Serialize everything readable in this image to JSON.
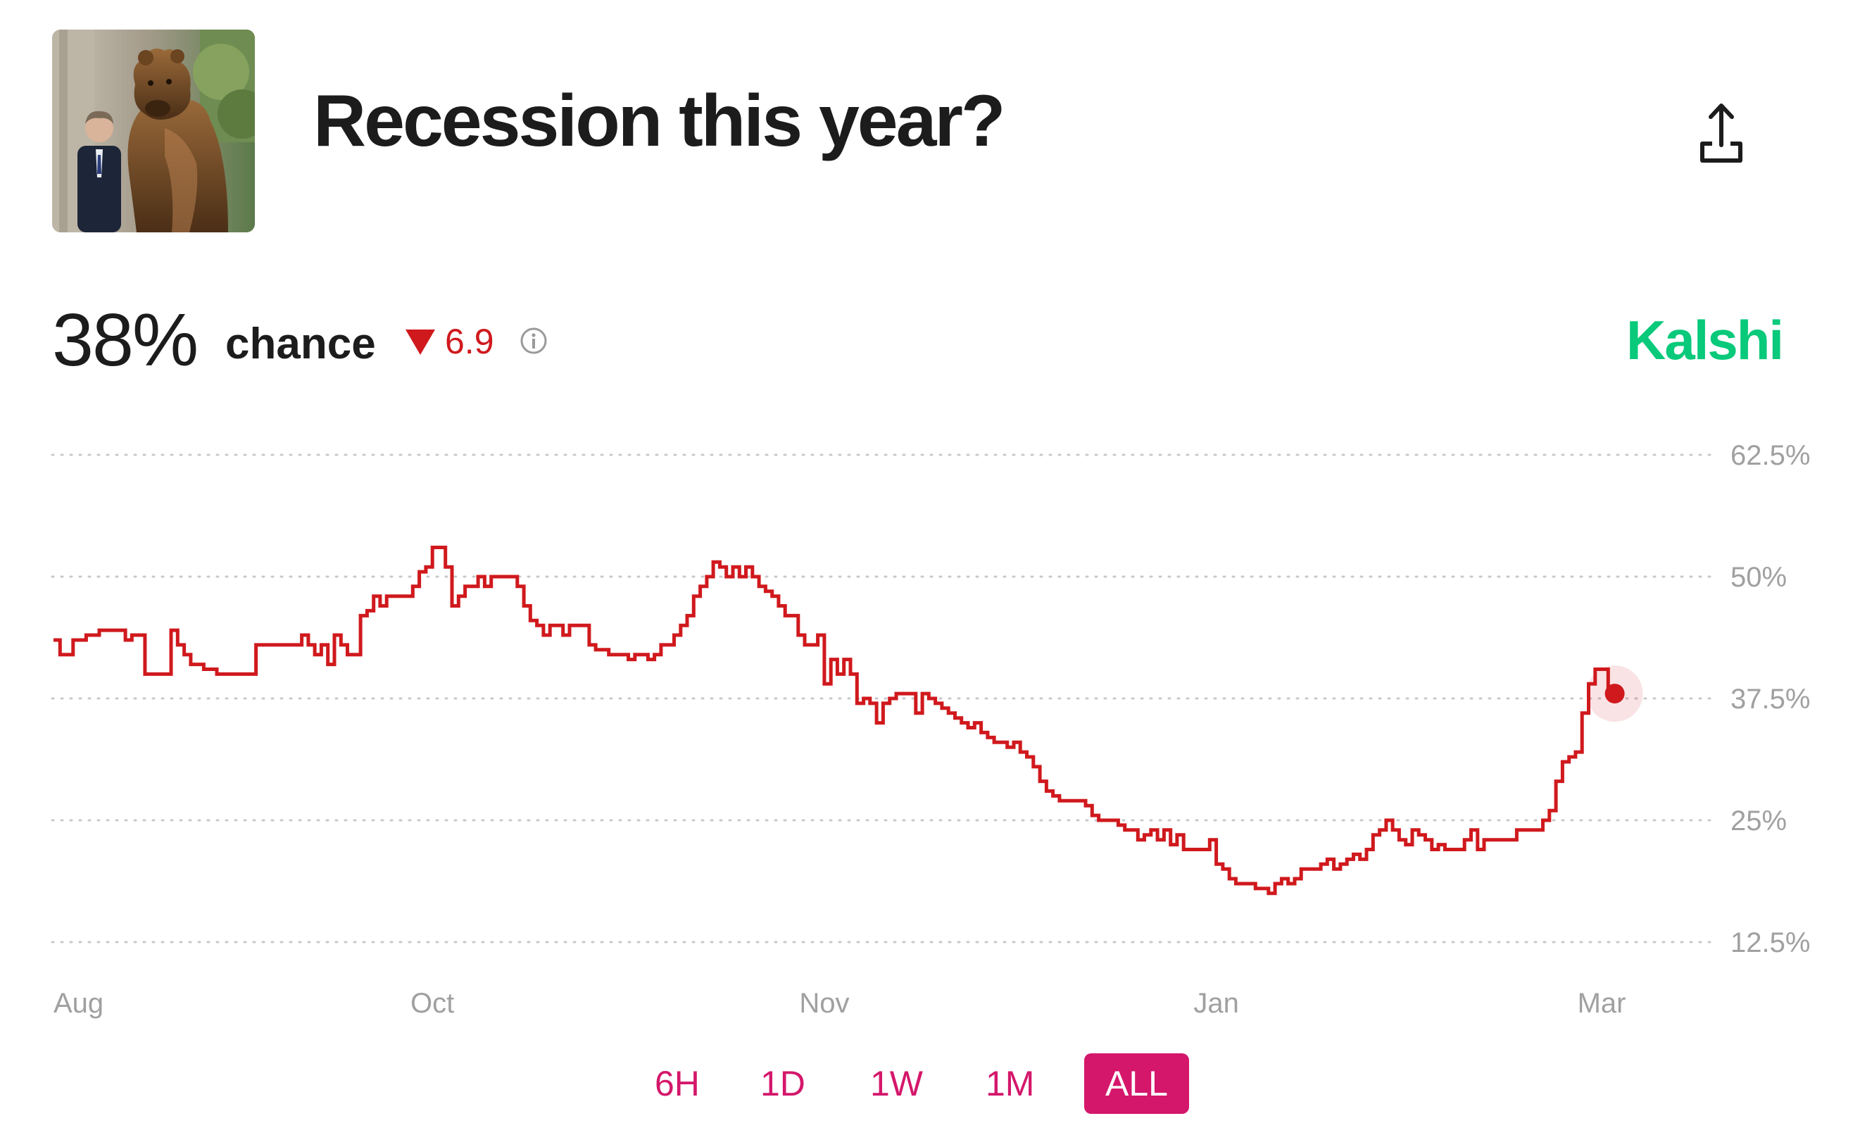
{
  "market": {
    "title": "Recession this year?",
    "thumbnail_icon": "bear-statue-photo",
    "share_icon": "share-icon",
    "info_icon": "info-icon"
  },
  "stats": {
    "percent": "38%",
    "chance_label": "chance",
    "delta_direction": "down",
    "delta": "6.9"
  },
  "brand": {
    "name": "Kalshi",
    "color": "#09c97a"
  },
  "colors": {
    "line": "#d0191d",
    "accent": "#d4176b",
    "grid": "#c8c8c8"
  },
  "chart_data": {
    "type": "line",
    "ylim": [
      12.5,
      62.5
    ],
    "yticks": [
      "62.5%",
      "50%",
      "37.5%",
      "25%",
      "12.5%"
    ],
    "ytick_values": [
      62.5,
      50,
      37.5,
      25,
      12.5
    ],
    "xticks": [
      "Aug",
      "Oct",
      "Nov",
      "Jan",
      "Mar"
    ],
    "xtick_days": [
      0,
      58,
      118,
      178,
      237
    ],
    "grid": true,
    "series": [
      {
        "values": [
          [
            0,
            43.5
          ],
          [
            1,
            42
          ],
          [
            3,
            43.5
          ],
          [
            5,
            44
          ],
          [
            7,
            44.5
          ],
          [
            9,
            44.5
          ],
          [
            11,
            43.5
          ],
          [
            12,
            44
          ],
          [
            14,
            40
          ],
          [
            17,
            40
          ],
          [
            18,
            44.5
          ],
          [
            19,
            43
          ],
          [
            20,
            42
          ],
          [
            21,
            41
          ],
          [
            23,
            40.5
          ],
          [
            25,
            40
          ],
          [
            28,
            40
          ],
          [
            30,
            40
          ],
          [
            31,
            43
          ],
          [
            33,
            43
          ],
          [
            35,
            43
          ],
          [
            37,
            43
          ],
          [
            38,
            44
          ],
          [
            39,
            43
          ],
          [
            40,
            42
          ],
          [
            41,
            43
          ],
          [
            42,
            41
          ],
          [
            43,
            44
          ],
          [
            44,
            43
          ],
          [
            45,
            42
          ],
          [
            46,
            42
          ],
          [
            47,
            46
          ],
          [
            48,
            46.5
          ],
          [
            49,
            48
          ],
          [
            50,
            47
          ],
          [
            51,
            48
          ],
          [
            52,
            48
          ],
          [
            53,
            48
          ],
          [
            54,
            48
          ],
          [
            55,
            49
          ],
          [
            56,
            50.5
          ],
          [
            57,
            51
          ],
          [
            58,
            53
          ],
          [
            59,
            53
          ],
          [
            60,
            51
          ],
          [
            61,
            47
          ],
          [
            62,
            48
          ],
          [
            63,
            49
          ],
          [
            64,
            49
          ],
          [
            65,
            50
          ],
          [
            66,
            49
          ],
          [
            67,
            50
          ],
          [
            68,
            50
          ],
          [
            69,
            50
          ],
          [
            70,
            50
          ],
          [
            71,
            49
          ],
          [
            72,
            47
          ],
          [
            73,
            45.5
          ],
          [
            74,
            45
          ],
          [
            75,
            44
          ],
          [
            76,
            45
          ],
          [
            77,
            45
          ],
          [
            78,
            44
          ],
          [
            79,
            45
          ],
          [
            80,
            45
          ],
          [
            81,
            45
          ],
          [
            82,
            43
          ],
          [
            83,
            42.5
          ],
          [
            84,
            42.5
          ],
          [
            85,
            42
          ],
          [
            86,
            42
          ],
          [
            87,
            42
          ],
          [
            88,
            41.5
          ],
          [
            89,
            42
          ],
          [
            90,
            42
          ],
          [
            91,
            41.5
          ],
          [
            92,
            42
          ],
          [
            93,
            43
          ],
          [
            94,
            43
          ],
          [
            95,
            44
          ],
          [
            96,
            45
          ],
          [
            97,
            46
          ],
          [
            98,
            48
          ],
          [
            99,
            49
          ],
          [
            100,
            50
          ],
          [
            101,
            51.5
          ],
          [
            102,
            51
          ],
          [
            103,
            50
          ],
          [
            104,
            51
          ],
          [
            105,
            50
          ],
          [
            106,
            51
          ],
          [
            107,
            50
          ],
          [
            108,
            49
          ],
          [
            109,
            48.5
          ],
          [
            110,
            48
          ],
          [
            111,
            47
          ],
          [
            112,
            46
          ],
          [
            113,
            46
          ],
          [
            114,
            44
          ],
          [
            115,
            43
          ],
          [
            116,
            43
          ],
          [
            117,
            44
          ],
          [
            118,
            39
          ],
          [
            119,
            41.5
          ],
          [
            120,
            40
          ],
          [
            121,
            41.5
          ],
          [
            122,
            40
          ],
          [
            123,
            37
          ],
          [
            124,
            37.5
          ],
          [
            125,
            37
          ],
          [
            126,
            35
          ],
          [
            127,
            37
          ],
          [
            128,
            37.5
          ],
          [
            129,
            38
          ],
          [
            130,
            38
          ],
          [
            131,
            38
          ],
          [
            132,
            36
          ],
          [
            133,
            38
          ],
          [
            134,
            37.5
          ],
          [
            135,
            37
          ],
          [
            136,
            36.5
          ],
          [
            137,
            36
          ],
          [
            138,
            35.5
          ],
          [
            139,
            35
          ],
          [
            140,
            34.5
          ],
          [
            141,
            35
          ],
          [
            142,
            34
          ],
          [
            143,
            33.5
          ],
          [
            144,
            33
          ],
          [
            145,
            33
          ],
          [
            146,
            32.5
          ],
          [
            147,
            33
          ],
          [
            148,
            32
          ],
          [
            149,
            31.5
          ],
          [
            150,
            30.5
          ],
          [
            151,
            29
          ],
          [
            152,
            28
          ],
          [
            153,
            27.5
          ],
          [
            154,
            27
          ],
          [
            155,
            27
          ],
          [
            156,
            27
          ],
          [
            157,
            27
          ],
          [
            158,
            26.5
          ],
          [
            159,
            25.5
          ],
          [
            160,
            25
          ],
          [
            161,
            25
          ],
          [
            162,
            25
          ],
          [
            163,
            24.5
          ],
          [
            164,
            24
          ],
          [
            165,
            24
          ],
          [
            166,
            23
          ],
          [
            167,
            23.5
          ],
          [
            168,
            24
          ],
          [
            169,
            23
          ],
          [
            170,
            24
          ],
          [
            171,
            22.5
          ],
          [
            172,
            23.5
          ],
          [
            173,
            22
          ],
          [
            174,
            22
          ],
          [
            175,
            22
          ],
          [
            176,
            22
          ],
          [
            177,
            23
          ],
          [
            178,
            20.5
          ],
          [
            179,
            20
          ],
          [
            180,
            19
          ],
          [
            181,
            18.5
          ],
          [
            182,
            18.5
          ],
          [
            183,
            18.5
          ],
          [
            184,
            18
          ],
          [
            185,
            18
          ],
          [
            186,
            17.5
          ],
          [
            187,
            18.5
          ],
          [
            188,
            19
          ],
          [
            189,
            18.5
          ],
          [
            190,
            19
          ],
          [
            191,
            20
          ],
          [
            192,
            20
          ],
          [
            193,
            20
          ],
          [
            194,
            20.5
          ],
          [
            195,
            21
          ],
          [
            196,
            20
          ],
          [
            197,
            20.5
          ],
          [
            198,
            21
          ],
          [
            199,
            21.5
          ],
          [
            200,
            21
          ],
          [
            201,
            22
          ],
          [
            202,
            23.5
          ],
          [
            203,
            24
          ],
          [
            204,
            25
          ],
          [
            205,
            24
          ],
          [
            206,
            23
          ],
          [
            207,
            22.5
          ],
          [
            208,
            24
          ],
          [
            209,
            23.5
          ],
          [
            210,
            23
          ],
          [
            211,
            22
          ],
          [
            212,
            22.5
          ],
          [
            213,
            22
          ],
          [
            214,
            22
          ],
          [
            215,
            22
          ],
          [
            216,
            23
          ],
          [
            217,
            24
          ],
          [
            218,
            22
          ],
          [
            219,
            23
          ],
          [
            220,
            23
          ],
          [
            221,
            23
          ],
          [
            222,
            23
          ],
          [
            223,
            23
          ],
          [
            224,
            24
          ],
          [
            225,
            24
          ],
          [
            226,
            24
          ],
          [
            227,
            24
          ],
          [
            228,
            25
          ],
          [
            229,
            26
          ],
          [
            230,
            29
          ],
          [
            231,
            31
          ],
          [
            232,
            31.5
          ],
          [
            233,
            32
          ],
          [
            234,
            36
          ],
          [
            235,
            39
          ],
          [
            236,
            40.5
          ],
          [
            237,
            40.5
          ],
          [
            238,
            38
          ],
          [
            239,
            38
          ]
        ]
      }
    ],
    "last_point": [
      239,
      38
    ]
  },
  "range_tabs": [
    {
      "label": "6H",
      "active": false
    },
    {
      "label": "1D",
      "active": false
    },
    {
      "label": "1W",
      "active": false
    },
    {
      "label": "1M",
      "active": false
    },
    {
      "label": "ALL",
      "active": true
    }
  ]
}
